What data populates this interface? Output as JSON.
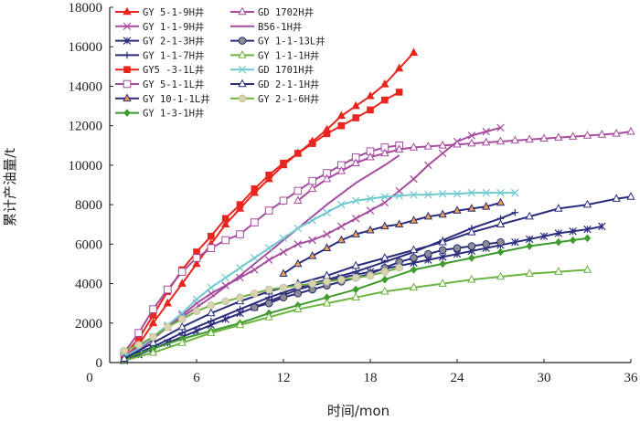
{
  "chart_data": {
    "type": "line",
    "title": "",
    "xlabel": "时间/mon",
    "ylabel": "累计产油量/t",
    "xlim": [
      0,
      36
    ],
    "ylim": [
      0,
      18000
    ],
    "xticks": [
      0,
      6,
      12,
      18,
      24,
      30,
      36
    ],
    "yticks": [
      0,
      2000,
      4000,
      6000,
      8000,
      10000,
      12000,
      14000,
      16000,
      18000
    ],
    "grid": false,
    "legend_position": "top-left",
    "series": [
      {
        "name": "GY 5-1-9H井",
        "color": "#E8251F",
        "marker": "triangle-filled",
        "x": [
          1,
          2,
          3,
          4,
          5,
          6,
          7,
          8,
          9,
          10,
          11,
          12,
          13,
          14,
          15,
          16,
          17,
          18,
          19,
          20,
          21
        ],
        "y": [
          300,
          900,
          2000,
          3000,
          4000,
          5000,
          6000,
          7000,
          7800,
          8600,
          9300,
          10000,
          10600,
          11200,
          11800,
          12500,
          13000,
          13500,
          14100,
          14900,
          15700
        ]
      },
      {
        "name": "GY 1-1-9H井",
        "color": "#A64B9E",
        "marker": "x",
        "x": [
          1,
          2,
          3,
          4,
          5,
          6,
          7,
          8,
          9,
          10,
          11,
          12,
          13,
          14,
          15,
          16,
          17,
          18,
          19,
          20,
          21,
          22,
          23,
          24,
          25,
          26,
          27
        ],
        "y": [
          200,
          600,
          1200,
          1800,
          2400,
          3000,
          3500,
          3900,
          4300,
          4700,
          5200,
          5600,
          6000,
          6200,
          6500,
          6900,
          7300,
          7700,
          8100,
          8700,
          9300,
          10000,
          10600,
          11200,
          11500,
          11700,
          11900
        ]
      },
      {
        "name": "GY 2-1-3H井",
        "color": "#2B2C7C",
        "marker": "star",
        "x": [
          1,
          2,
          3,
          4,
          5,
          6,
          7,
          8,
          9,
          10,
          11,
          12,
          13,
          14,
          15,
          16,
          17,
          18,
          19,
          20,
          21,
          22,
          23,
          24,
          25,
          26,
          27,
          28,
          29,
          30,
          31,
          32,
          33,
          34
        ],
        "y": [
          100,
          400,
          700,
          1000,
          1300,
          1600,
          1900,
          2200,
          2500,
          2800,
          3100,
          3400,
          3700,
          3900,
          4100,
          4300,
          4450,
          4600,
          4750,
          4900,
          5050,
          5200,
          5350,
          5500,
          5650,
          5800,
          5950,
          6100,
          6250,
          6400,
          6550,
          6650,
          6750,
          6900
        ]
      },
      {
        "name": "GY 1-1-7H井",
        "color": "#2B2C7C",
        "marker": "plus",
        "x": [
          1,
          3,
          5,
          7,
          9,
          11,
          13,
          15,
          17,
          19,
          21,
          23,
          25,
          27,
          28
        ],
        "y": [
          200,
          800,
          1500,
          2100,
          2700,
          3300,
          3800,
          4200,
          4600,
          5100,
          5600,
          6200,
          6800,
          7300,
          7600
        ]
      },
      {
        "name": "GY5 -3-1L井",
        "color": "#E8251F",
        "marker": "square-filled",
        "x": [
          1,
          2,
          3,
          4,
          5,
          6,
          7,
          8,
          9,
          10,
          11,
          12,
          13,
          14,
          15,
          16,
          17,
          18,
          19,
          20
        ],
        "y": [
          400,
          1200,
          2400,
          3600,
          4700,
          5600,
          6400,
          7300,
          8000,
          8800,
          9500,
          10100,
          10600,
          11100,
          11600,
          12000,
          12400,
          12800,
          13300,
          13700
        ]
      },
      {
        "name": "GY 5-1-1L井",
        "color": "#A64B9E",
        "marker": "square",
        "x": [
          1,
          2,
          3,
          4,
          5,
          6,
          7,
          8,
          9,
          10,
          11,
          12,
          13,
          14,
          15,
          16,
          17,
          18,
          19,
          20
        ],
        "y": [
          500,
          1500,
          2700,
          3700,
          4600,
          5300,
          5800,
          6200,
          6500,
          7100,
          7700,
          8200,
          8700,
          9200,
          9600,
          10000,
          10400,
          10700,
          10900,
          11000
        ]
      },
      {
        "name": "GY 10-1-1L井",
        "color": "#2B2C7C",
        "marker": "triangle-orange",
        "x": [
          12,
          13,
          14,
          15,
          16,
          17,
          18,
          19,
          20,
          21,
          22,
          23,
          24,
          25,
          26,
          27
        ],
        "y": [
          4500,
          5000,
          5400,
          5800,
          6200,
          6500,
          6700,
          6900,
          7000,
          7200,
          7400,
          7500,
          7700,
          7800,
          7900,
          8100
        ]
      },
      {
        "name": "GY 1-3-1H井",
        "color": "#3E9B2E",
        "marker": "diamond-filled",
        "x": [
          1,
          3,
          5,
          7,
          9,
          11,
          13,
          15,
          17,
          19,
          21,
          23,
          25,
          27,
          29,
          31,
          32,
          33
        ],
        "y": [
          200,
          700,
          1200,
          1600,
          2000,
          2500,
          2900,
          3300,
          3700,
          4200,
          4700,
          5000,
          5300,
          5600,
          5900,
          6100,
          6200,
          6300
        ]
      },
      {
        "name": "GD 1702H井",
        "color": "#A64B9E",
        "marker": "triangle",
        "x": [
          13,
          14,
          15,
          16,
          17,
          18,
          19,
          20,
          21,
          22,
          23,
          24,
          25,
          26,
          27,
          28,
          29,
          30,
          31,
          32,
          33,
          34,
          35,
          36
        ],
        "y": [
          8200,
          8800,
          9300,
          9700,
          10100,
          10400,
          10600,
          10800,
          10900,
          10950,
          11000,
          11050,
          11100,
          11150,
          11200,
          11250,
          11300,
          11350,
          11400,
          11450,
          11500,
          11550,
          11600,
          11700
        ]
      },
      {
        "name": "B56-1H井",
        "color": "#A64B9E",
        "marker": "none",
        "x": [
          1,
          3,
          5,
          7,
          9,
          11,
          13,
          15,
          17,
          19,
          20
        ],
        "y": [
          300,
          1300,
          2300,
          3300,
          4400,
          5600,
          6800,
          8000,
          9100,
          10000,
          10500
        ]
      },
      {
        "name": "GY 1-1-13L井",
        "color": "#2B2C7C",
        "marker": "circle-gray",
        "x": [
          10,
          11,
          12,
          13,
          14,
          15,
          16,
          17,
          18,
          19,
          20,
          21,
          22,
          23,
          24,
          25,
          26,
          27
        ],
        "y": [
          2800,
          3000,
          3300,
          3500,
          3700,
          3900,
          4100,
          4300,
          4500,
          4800,
          5100,
          5300,
          5500,
          5700,
          5800,
          5900,
          6000,
          6100
        ]
      },
      {
        "name": "GY 1-1-1H井",
        "color": "#6CB33F",
        "marker": "triangle-green",
        "x": [
          1,
          3,
          5,
          7,
          9,
          11,
          13,
          15,
          17,
          19,
          21,
          23,
          25,
          27,
          29,
          31,
          33
        ],
        "y": [
          100,
          500,
          1000,
          1500,
          1900,
          2300,
          2700,
          3000,
          3300,
          3600,
          3800,
          4000,
          4200,
          4350,
          4500,
          4600,
          4700
        ]
      },
      {
        "name": "GD 1701H井",
        "color": "#6FC9CF",
        "marker": "x-cyan",
        "x": [
          1,
          2,
          3,
          4,
          5,
          6,
          7,
          8,
          9,
          10,
          11,
          12,
          13,
          14,
          15,
          16,
          17,
          18,
          19,
          20,
          21,
          22,
          23,
          24,
          25,
          26,
          27,
          28
        ],
        "y": [
          300,
          700,
          1300,
          1900,
          2500,
          3200,
          3800,
          4300,
          4800,
          5300,
          5800,
          6300,
          6800,
          7200,
          7600,
          8000,
          8200,
          8300,
          8400,
          8450,
          8500,
          8500,
          8550,
          8550,
          8600,
          8600,
          8600,
          8600
        ]
      },
      {
        "name": "GD 2-1-1H井",
        "color": "#2B2C7C",
        "marker": "triangle",
        "x": [
          1,
          3,
          5,
          7,
          9,
          11,
          13,
          15,
          17,
          19,
          21,
          23,
          25,
          27,
          29,
          31,
          33,
          35,
          36
        ],
        "y": [
          200,
          1000,
          1800,
          2500,
          3100,
          3600,
          4000,
          4400,
          4900,
          5300,
          5700,
          6100,
          6600,
          7000,
          7400,
          7800,
          8000,
          8300,
          8400
        ]
      },
      {
        "name": "GY 2-1-6H井",
        "color": "#6CB33F",
        "marker": "circle-beige",
        "x": [
          1,
          2,
          3,
          4,
          5,
          6,
          7,
          8,
          9,
          10,
          11,
          12,
          13,
          14,
          15,
          16,
          17,
          18,
          19,
          20
        ],
        "y": [
          600,
          900,
          1300,
          1800,
          2200,
          2600,
          2900,
          3100,
          3300,
          3500,
          3700,
          3800,
          3900,
          4000,
          4100,
          4200,
          4300,
          4400,
          4600,
          4800
        ]
      }
    ]
  }
}
